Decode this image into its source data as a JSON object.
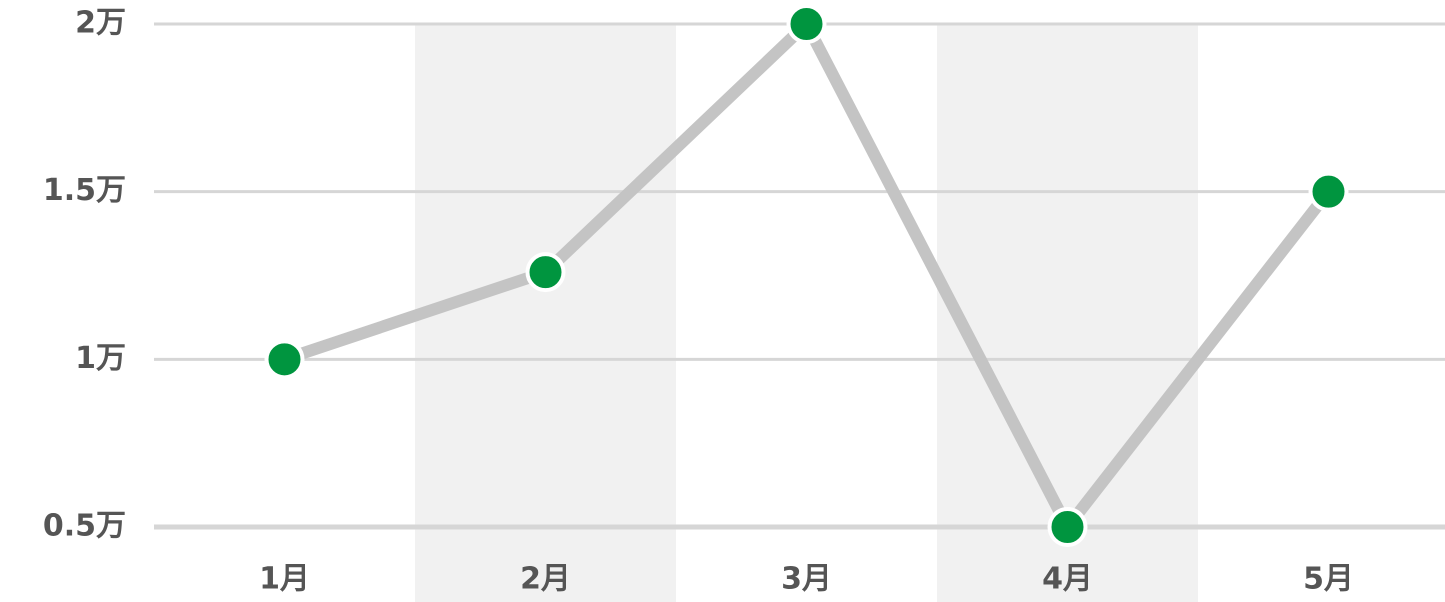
{
  "chart_data": {
    "type": "line",
    "categories": [
      "1月",
      "2月",
      "3月",
      "4月",
      "5月"
    ],
    "values": [
      10000,
      12600,
      20000,
      5000,
      15000
    ],
    "color": "#c4c4c4",
    "marker_color": "#00953f",
    "ylim": [
      5000,
      20000
    ],
    "yticks": [
      {
        "value": 5000,
        "label": "0.5万"
      },
      {
        "value": 10000,
        "label": "1万"
      },
      {
        "value": 15000,
        "label": "1.5万"
      },
      {
        "value": 20000,
        "label": "2万"
      }
    ],
    "grid": true
  }
}
